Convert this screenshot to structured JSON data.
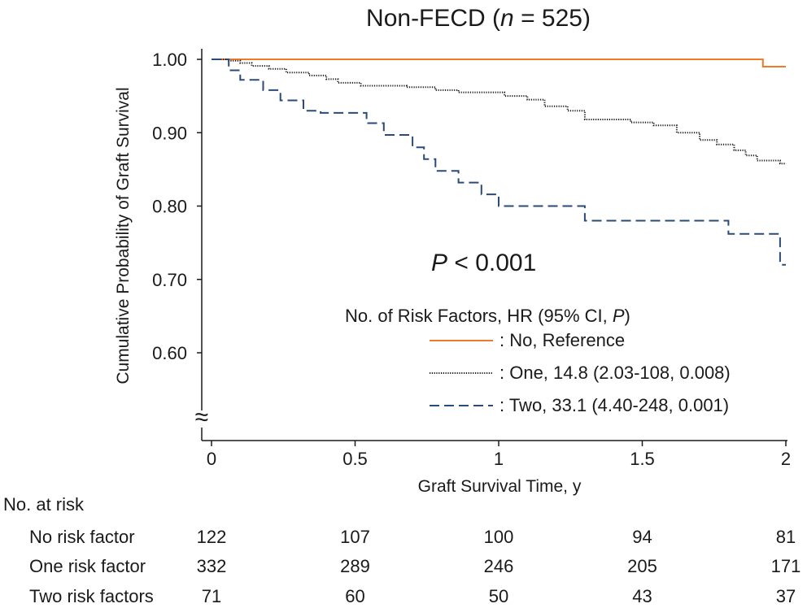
{
  "chart_data": {
    "type": "line",
    "title": "Non-FECD (",
    "title_n": "n",
    "title_rest": " = 525)",
    "xlabel": "Graft Survival Time, y",
    "ylabel": "Cumulative Probability of Graft Survival",
    "xlim": [
      0,
      2
    ],
    "ylim": [
      0.6,
      1.0
    ],
    "x_ticks": [
      0,
      0.5,
      1,
      1.5,
      2
    ],
    "x_tick_labels": [
      "0",
      "0.5",
      "1",
      "1.5",
      "2"
    ],
    "y_ticks": [
      1.0,
      0.9,
      0.8,
      0.7,
      0.6
    ],
    "y_tick_labels": [
      "1.00",
      "0.90",
      "0.80",
      "0.70",
      "0.60"
    ],
    "axis_break_symbol": "≈",
    "annotation": {
      "italic": "P",
      "rest": " < 0.001"
    },
    "legend": {
      "title": "No. of Risk Factors, HR (95% CI, ",
      "title_italic": "P",
      "title_end": ")",
      "placement": "right"
    },
    "series": [
      {
        "name": ":  No, Reference",
        "color": "#f07a2a",
        "dash": "solid",
        "points": [
          [
            0,
            1.0
          ],
          [
            1.92,
            1.0
          ],
          [
            1.92,
            0.99
          ],
          [
            2.0,
            0.99
          ]
        ]
      },
      {
        "name": ":  One, 14.8 (2.03-108, 0.008)",
        "color": "#1a1a1a",
        "dash": "dotted",
        "points": [
          [
            0,
            1.0
          ],
          [
            0.06,
            1.0
          ],
          [
            0.06,
            0.998
          ],
          [
            0.1,
            0.998
          ],
          [
            0.1,
            0.995
          ],
          [
            0.14,
            0.995
          ],
          [
            0.14,
            0.991
          ],
          [
            0.2,
            0.991
          ],
          [
            0.2,
            0.987
          ],
          [
            0.26,
            0.987
          ],
          [
            0.26,
            0.982
          ],
          [
            0.34,
            0.982
          ],
          [
            0.34,
            0.978
          ],
          [
            0.4,
            0.978
          ],
          [
            0.4,
            0.973
          ],
          [
            0.44,
            0.973
          ],
          [
            0.44,
            0.968
          ],
          [
            0.52,
            0.968
          ],
          [
            0.52,
            0.964
          ],
          [
            0.68,
            0.964
          ],
          [
            0.68,
            0.962
          ],
          [
            0.78,
            0.962
          ],
          [
            0.78,
            0.958
          ],
          [
            0.86,
            0.958
          ],
          [
            0.86,
            0.955
          ],
          [
            1.02,
            0.955
          ],
          [
            1.02,
            0.95
          ],
          [
            1.1,
            0.95
          ],
          [
            1.1,
            0.945
          ],
          [
            1.16,
            0.945
          ],
          [
            1.16,
            0.936
          ],
          [
            1.24,
            0.936
          ],
          [
            1.24,
            0.93
          ],
          [
            1.3,
            0.93
          ],
          [
            1.3,
            0.918
          ],
          [
            1.46,
            0.918
          ],
          [
            1.46,
            0.914
          ],
          [
            1.54,
            0.914
          ],
          [
            1.54,
            0.91
          ],
          [
            1.62,
            0.91
          ],
          [
            1.62,
            0.9
          ],
          [
            1.7,
            0.9
          ],
          [
            1.7,
            0.89
          ],
          [
            1.76,
            0.89
          ],
          [
            1.76,
            0.884
          ],
          [
            1.82,
            0.884
          ],
          [
            1.82,
            0.876
          ],
          [
            1.86,
            0.876
          ],
          [
            1.86,
            0.869
          ],
          [
            1.9,
            0.869
          ],
          [
            1.9,
            0.862
          ],
          [
            1.98,
            0.862
          ],
          [
            1.98,
            0.858
          ],
          [
            2.0,
            0.858
          ]
        ]
      },
      {
        "name": ":  Two, 33.1 (4.40-248, 0.001)",
        "color": "#2a4a78",
        "dash": "dashed",
        "points": [
          [
            0,
            1.0
          ],
          [
            0.06,
            1.0
          ],
          [
            0.06,
            0.985
          ],
          [
            0.1,
            0.985
          ],
          [
            0.1,
            0.972
          ],
          [
            0.18,
            0.972
          ],
          [
            0.18,
            0.958
          ],
          [
            0.24,
            0.958
          ],
          [
            0.24,
            0.944
          ],
          [
            0.32,
            0.944
          ],
          [
            0.32,
            0.93
          ],
          [
            0.38,
            0.93
          ],
          [
            0.38,
            0.927
          ],
          [
            0.54,
            0.927
          ],
          [
            0.54,
            0.913
          ],
          [
            0.6,
            0.913
          ],
          [
            0.6,
            0.897
          ],
          [
            0.7,
            0.897
          ],
          [
            0.7,
            0.88
          ],
          [
            0.74,
            0.88
          ],
          [
            0.74,
            0.864
          ],
          [
            0.78,
            0.864
          ],
          [
            0.78,
            0.848
          ],
          [
            0.86,
            0.848
          ],
          [
            0.86,
            0.832
          ],
          [
            0.94,
            0.832
          ],
          [
            0.94,
            0.816
          ],
          [
            1.0,
            0.816
          ],
          [
            1.0,
            0.8
          ],
          [
            1.3,
            0.8
          ],
          [
            1.3,
            0.78
          ],
          [
            1.8,
            0.78
          ],
          [
            1.8,
            0.762
          ],
          [
            1.98,
            0.762
          ],
          [
            1.98,
            0.72
          ],
          [
            2.0,
            0.72
          ]
        ]
      }
    ],
    "risk_table": {
      "title": "No. at risk",
      "rows": [
        {
          "label": "No risk factor",
          "values": [
            "122",
            "107",
            "100",
            "94",
            "81"
          ]
        },
        {
          "label": "One risk factor",
          "values": [
            "332",
            "289",
            "246",
            "205",
            "171"
          ]
        },
        {
          "label": "Two risk factors",
          "values": [
            "71",
            "60",
            "50",
            "43",
            "37"
          ]
        }
      ]
    }
  }
}
